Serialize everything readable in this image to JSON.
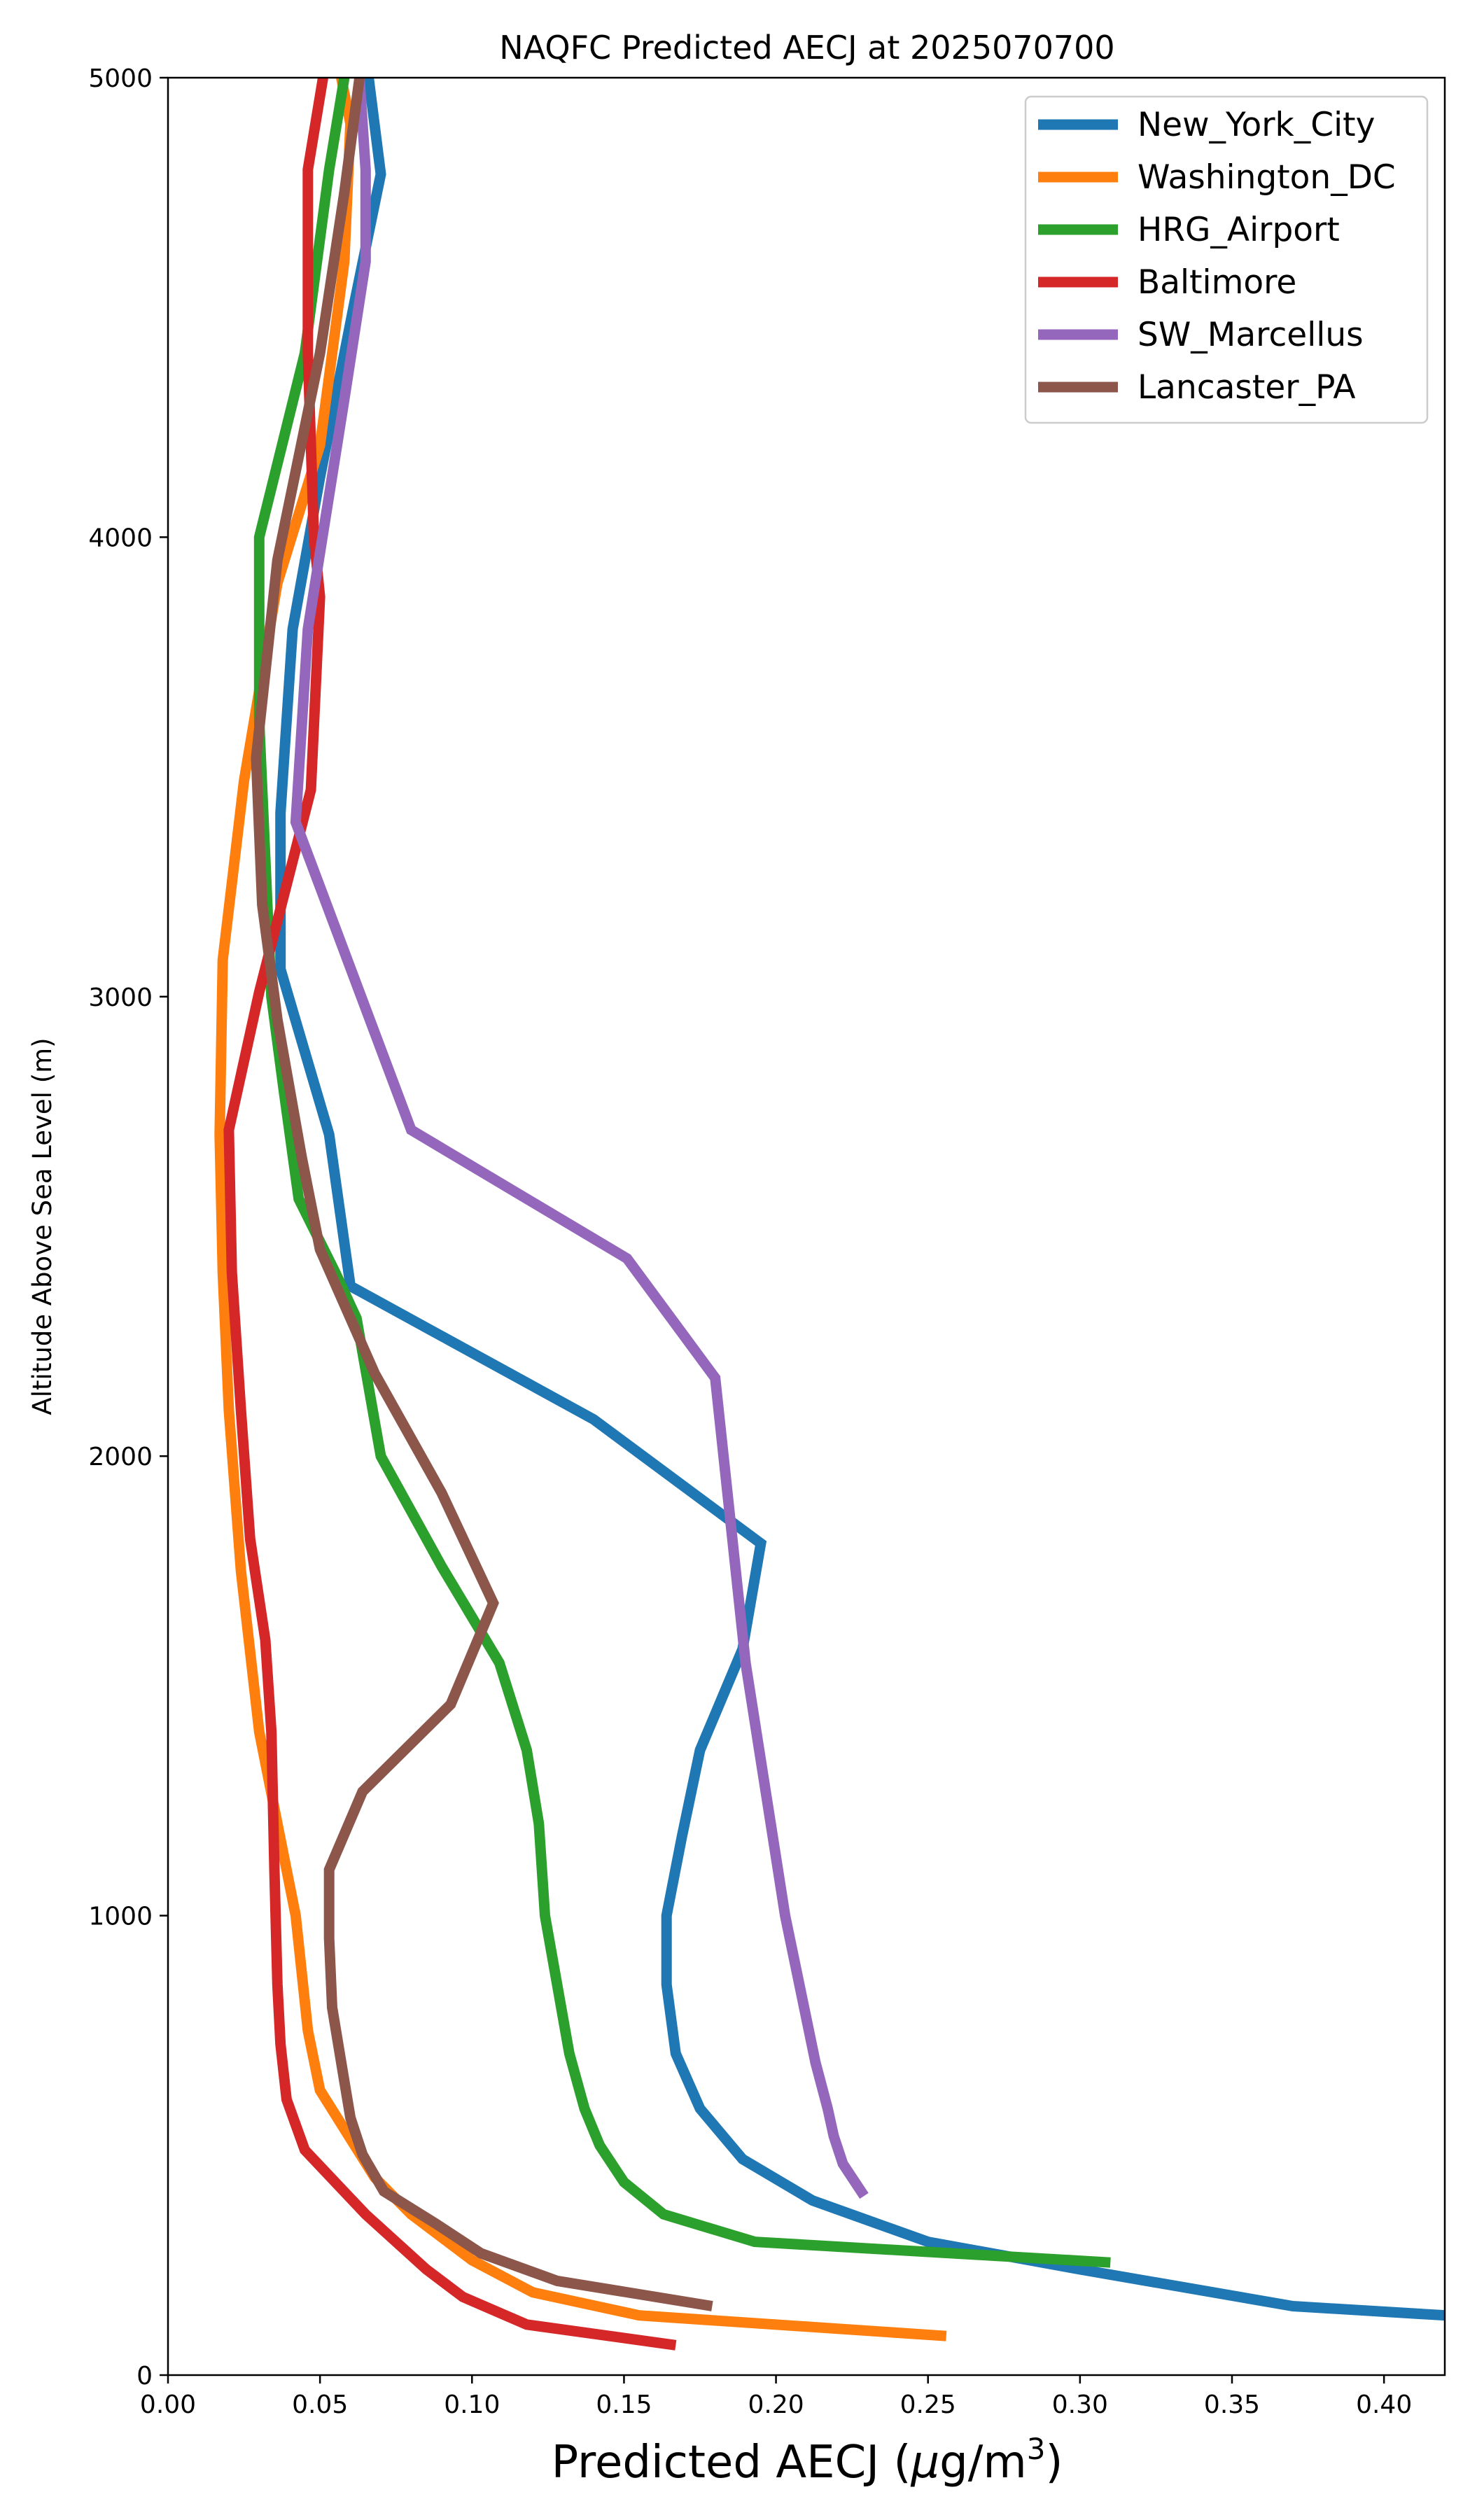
{
  "chart_data": {
    "type": "line",
    "title": "NAQFC Predicted AECJ at 2025070700",
    "xlabel_main": "Predicted AECJ (",
    "xlabel_mu": "μ",
    "xlabel_unit": "g/m",
    "xlabel_sup": "3",
    "xlabel_close": ")",
    "ylabel": "Altitude Above Sea Level (m)",
    "xlim": [
      0.0,
      0.42
    ],
    "ylim": [
      0,
      5000
    ],
    "xticks": [
      "0.00",
      "0.05",
      "0.10",
      "0.15",
      "0.20",
      "0.25",
      "0.30",
      "0.35",
      "0.40"
    ],
    "xtick_values": [
      0.0,
      0.05,
      0.1,
      0.15,
      0.2,
      0.25,
      0.3,
      0.35,
      0.4
    ],
    "yticks": [
      "0",
      "1000",
      "2000",
      "3000",
      "4000",
      "5000"
    ],
    "ytick_values": [
      0,
      1000,
      2000,
      3000,
      4000,
      5000
    ],
    "grid": false,
    "legend_position": "top-right",
    "series": [
      {
        "name": "New_York_City",
        "color": "#1f77b4",
        "points": [
          [
            0.42,
            130
          ],
          [
            0.37,
            150
          ],
          [
            0.3,
            230
          ],
          [
            0.25,
            290
          ],
          [
            0.212,
            380
          ],
          [
            0.189,
            470
          ],
          [
            0.175,
            580
          ],
          [
            0.167,
            700
          ],
          [
            0.164,
            850
          ],
          [
            0.164,
            1000
          ],
          [
            0.169,
            1170
          ],
          [
            0.175,
            1360
          ],
          [
            0.189,
            1580
          ],
          [
            0.195,
            1810
          ],
          [
            0.14,
            2080
          ],
          [
            0.06,
            2370
          ],
          [
            0.053,
            2700
          ],
          [
            0.037,
            3060
          ],
          [
            0.037,
            3400
          ],
          [
            0.041,
            3800
          ],
          [
            0.05,
            4130
          ],
          [
            0.061,
            4500
          ],
          [
            0.07,
            4790
          ],
          [
            0.066,
            5000
          ]
        ]
      },
      {
        "name": "Washington_DC",
        "color": "#ff7f0e",
        "points": [
          [
            0.256,
            85
          ],
          [
            0.155,
            130
          ],
          [
            0.12,
            180
          ],
          [
            0.1,
            250
          ],
          [
            0.08,
            350
          ],
          [
            0.068,
            430
          ],
          [
            0.05,
            620
          ],
          [
            0.046,
            750
          ],
          [
            0.042,
            1000
          ],
          [
            0.036,
            1200
          ],
          [
            0.03,
            1400
          ],
          [
            0.024,
            1750
          ],
          [
            0.02,
            2100
          ],
          [
            0.018,
            2400
          ],
          [
            0.017,
            2700
          ],
          [
            0.018,
            3080
          ],
          [
            0.025,
            3470
          ],
          [
            0.036,
            3900
          ],
          [
            0.05,
            4200
          ],
          [
            0.058,
            4600
          ],
          [
            0.06,
            4900
          ],
          [
            0.057,
            5000
          ]
        ]
      },
      {
        "name": "HRG_Airport",
        "color": "#2ca02c",
        "points": [
          [
            0.31,
            245
          ],
          [
            0.193,
            290
          ],
          [
            0.163,
            350
          ],
          [
            0.15,
            420
          ],
          [
            0.142,
            500
          ],
          [
            0.137,
            580
          ],
          [
            0.132,
            700
          ],
          [
            0.128,
            850
          ],
          [
            0.124,
            1000
          ],
          [
            0.122,
            1200
          ],
          [
            0.118,
            1360
          ],
          [
            0.109,
            1550
          ],
          [
            0.09,
            1760
          ],
          [
            0.07,
            2000
          ],
          [
            0.062,
            2300
          ],
          [
            0.055,
            2400
          ],
          [
            0.043,
            2560
          ],
          [
            0.038,
            2800
          ],
          [
            0.034,
            3000
          ],
          [
            0.03,
            3600
          ],
          [
            0.03,
            4000
          ],
          [
            0.045,
            4400
          ],
          [
            0.053,
            4800
          ],
          [
            0.058,
            5000
          ]
        ]
      },
      {
        "name": "Baltimore",
        "color": "#d62728",
        "points": [
          [
            0.167,
            65
          ],
          [
            0.118,
            110
          ],
          [
            0.097,
            170
          ],
          [
            0.085,
            230
          ],
          [
            0.065,
            350
          ],
          [
            0.045,
            490
          ],
          [
            0.039,
            600
          ],
          [
            0.037,
            720
          ],
          [
            0.036,
            850
          ],
          [
            0.035,
            1100
          ],
          [
            0.034,
            1400
          ],
          [
            0.032,
            1600
          ],
          [
            0.027,
            1820
          ],
          [
            0.024,
            2100
          ],
          [
            0.021,
            2400
          ],
          [
            0.02,
            2710
          ],
          [
            0.03,
            3010
          ],
          [
            0.047,
            3450
          ],
          [
            0.05,
            3870
          ],
          [
            0.048,
            4000
          ],
          [
            0.046,
            4400
          ],
          [
            0.046,
            4800
          ],
          [
            0.051,
            5000
          ]
        ]
      },
      {
        "name": "SW_Marcellus",
        "color": "#9467bd",
        "points": [
          [
            0.229,
            390
          ],
          [
            0.222,
            460
          ],
          [
            0.219,
            520
          ],
          [
            0.217,
            580
          ],
          [
            0.213,
            680
          ],
          [
            0.203,
            1000
          ],
          [
            0.19,
            1550
          ],
          [
            0.18,
            2170
          ],
          [
            0.151,
            2430
          ],
          [
            0.08,
            2710
          ],
          [
            0.042,
            3380
          ],
          [
            0.046,
            3800
          ],
          [
            0.058,
            4300
          ],
          [
            0.065,
            4600
          ],
          [
            0.065,
            4800
          ],
          [
            0.063,
            5000
          ]
        ]
      },
      {
        "name": "Lancaster_PA",
        "color": "#8c564b",
        "points": [
          [
            0.179,
            150
          ],
          [
            0.128,
            205
          ],
          [
            0.103,
            265
          ],
          [
            0.088,
            330
          ],
          [
            0.071,
            400
          ],
          [
            0.064,
            480
          ],
          [
            0.06,
            560
          ],
          [
            0.057,
            680
          ],
          [
            0.054,
            800
          ],
          [
            0.053,
            950
          ],
          [
            0.053,
            1100
          ],
          [
            0.064,
            1270
          ],
          [
            0.093,
            1460
          ],
          [
            0.107,
            1680
          ],
          [
            0.09,
            1920
          ],
          [
            0.068,
            2180
          ],
          [
            0.05,
            2450
          ],
          [
            0.044,
            2650
          ],
          [
            0.036,
            2950
          ],
          [
            0.031,
            3200
          ],
          [
            0.029,
            3520
          ],
          [
            0.036,
            3950
          ],
          [
            0.05,
            4400
          ],
          [
            0.058,
            4750
          ],
          [
            0.063,
            5000
          ]
        ]
      }
    ]
  }
}
